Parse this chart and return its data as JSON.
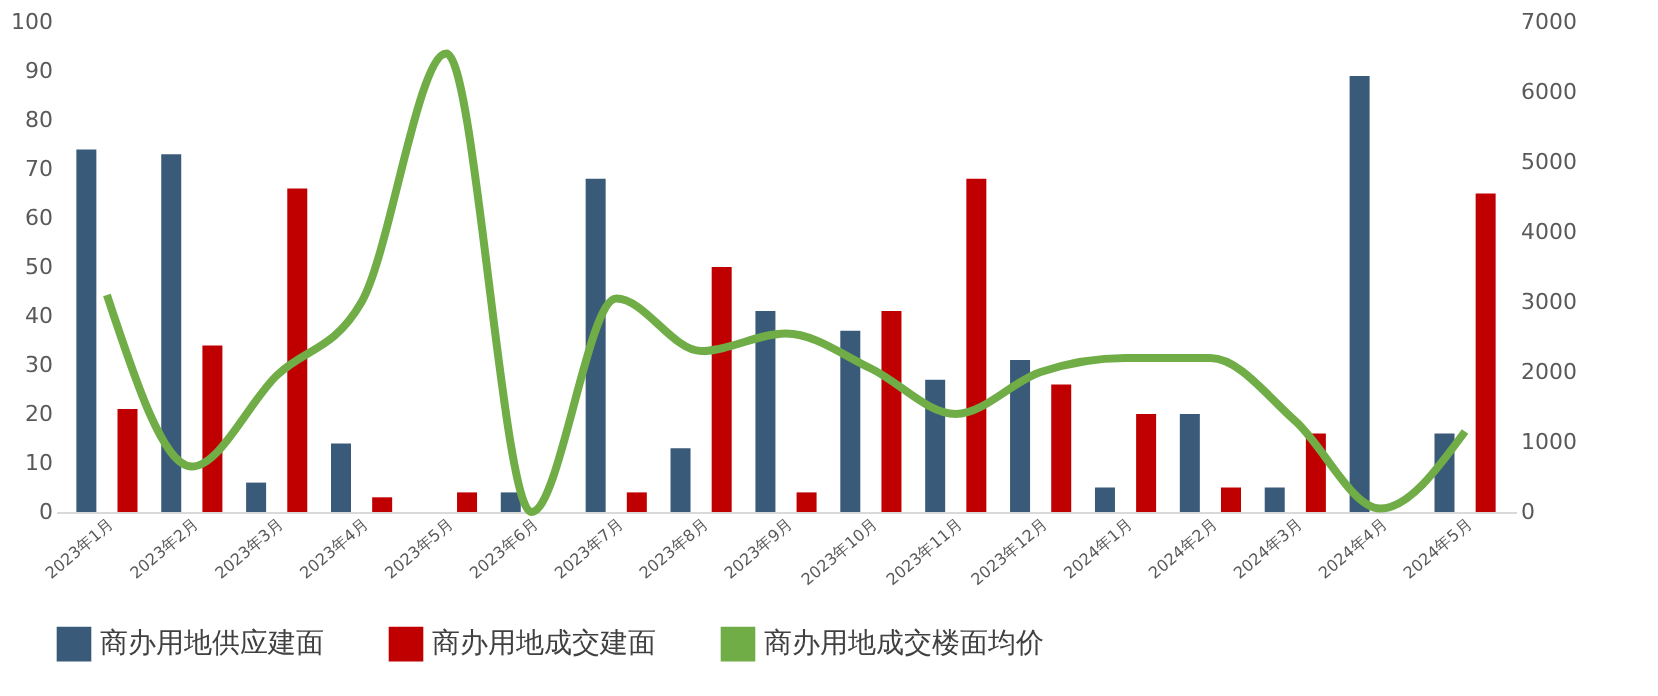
{
  "chart_data": {
    "type": "bar",
    "categories": [
      "2023年1月",
      "2023年2月",
      "2023年3月",
      "2023年4月",
      "2023年5月",
      "2023年6月",
      "2023年7月",
      "2023年8月",
      "2023年9月",
      "2023年10月",
      "2023年11月",
      "2023年12月",
      "2024年1月",
      "2024年2月",
      "2024年3月",
      "2024年4月",
      "2024年5月"
    ],
    "series": [
      {
        "name": "商办用地供应建面",
        "color": "#3a5a7a",
        "values": [
          74,
          73,
          6,
          14,
          null,
          4,
          68,
          13,
          41,
          37,
          27,
          31,
          5,
          20,
          5,
          89,
          16
        ]
      },
      {
        "name": "商办用地成交建面",
        "color": "#c00000",
        "values": [
          21,
          34,
          66,
          3,
          4,
          null,
          4,
          50,
          4,
          41,
          68,
          26,
          20,
          5,
          16,
          null,
          65
        ]
      },
      {
        "name": "商办用地成交楼面均价",
        "color": "#70ad47",
        "type": "line",
        "axis": "y2",
        "values": [
          3100,
          650,
          1950,
          3000,
          6550,
          0,
          3050,
          2300,
          2550,
          2050,
          1400,
          2000,
          2200,
          2200,
          1300,
          50,
          1150
        ]
      }
    ],
    "ylim": [
      0,
      100
    ],
    "yticks": [
      0,
      10,
      20,
      30,
      40,
      50,
      60,
      70,
      80,
      90,
      100
    ],
    "y2lim": [
      0,
      7000
    ],
    "y2ticks": [
      0,
      1000,
      2000,
      3000,
      4000,
      5000,
      6000,
      7000
    ],
    "grid": false,
    "legend": "bottom"
  }
}
